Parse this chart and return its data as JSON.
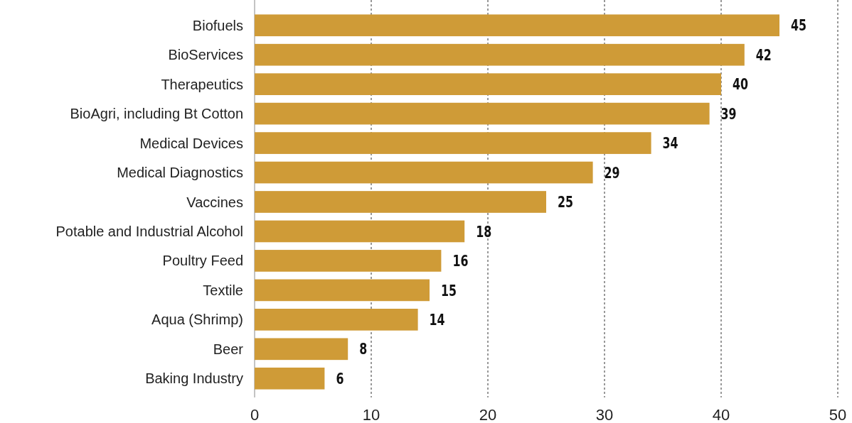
{
  "chart_data": {
    "type": "bar",
    "orientation": "horizontal",
    "categories": [
      "Biofuels",
      "BioServices",
      "Therapeutics",
      "BioAgri, including Bt Cotton",
      "Medical Devices",
      "Medical Diagnostics",
      "Vaccines",
      "Potable and Industrial Alcohol",
      "Poultry Feed",
      "Textile",
      "Aqua (Shrimp)",
      "Beer",
      "Baking Industry"
    ],
    "values": [
      45,
      42,
      40,
      39,
      34,
      29,
      25,
      18,
      16,
      15,
      14,
      8,
      6
    ],
    "color": "#cf9b37",
    "xlim": [
      0,
      50
    ],
    "xticks": [
      0,
      10,
      20,
      30,
      40,
      50
    ],
    "grid": "x",
    "data_labels": true
  }
}
